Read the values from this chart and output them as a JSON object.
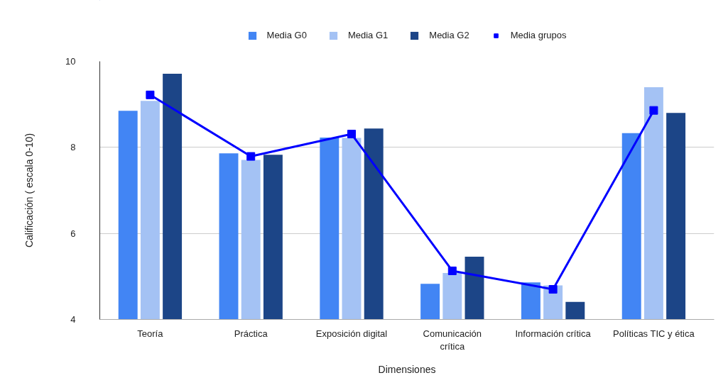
{
  "chart_data": {
    "type": "bar",
    "xlabel": "Dimensiones",
    "ylabel": "Calificación ( escala 0-10)",
    "categories": [
      "Teoría",
      "Práctica",
      "Exposición digital",
      "Comunicación\ncrítica",
      "Información crítica",
      "Políticas TIC y ética"
    ],
    "series": [
      {
        "name": "Media G0",
        "color": "#4285f4",
        "values": [
          8.85,
          7.86,
          8.23,
          4.83,
          4.86,
          8.33
        ]
      },
      {
        "name": "Media G1",
        "color": "#a4c2f4",
        "values": [
          9.08,
          7.71,
          8.22,
          5.08,
          4.79,
          9.4
        ]
      },
      {
        "name": "Media G2",
        "color": "#1c4587",
        "values": [
          9.71,
          7.83,
          8.44,
          5.46,
          4.41,
          8.8
        ]
      },
      {
        "name": "Media grupos",
        "type": "line",
        "color": "#0000ff",
        "values": [
          9.22,
          7.79,
          8.31,
          5.13,
          4.7,
          8.86
        ]
      }
    ],
    "ylim": [
      4,
      10
    ],
    "yticks": [
      4,
      6,
      8,
      10
    ],
    "grid": "y",
    "legend": "top",
    "marker": "square"
  }
}
